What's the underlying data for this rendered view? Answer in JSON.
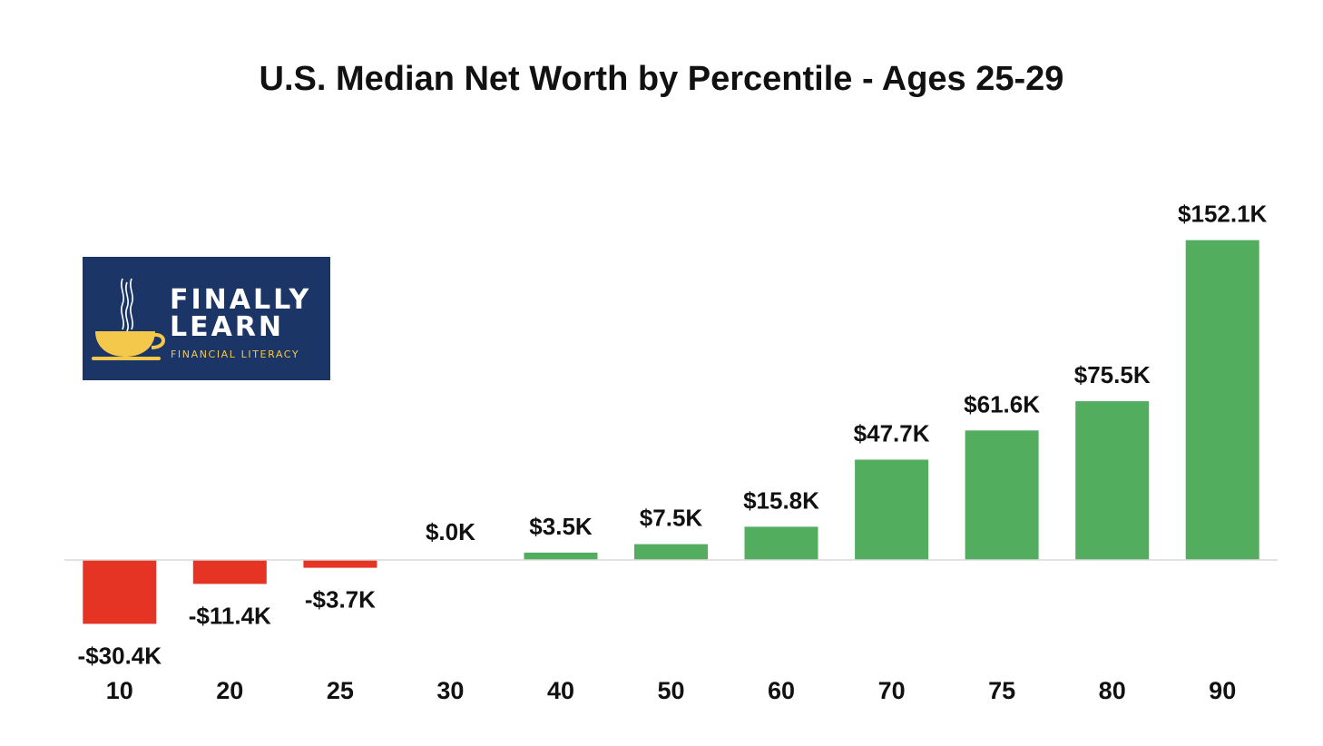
{
  "chart_data": {
    "type": "bar",
    "title": "U.S. Median Net Worth by Percentile - Ages 25-29",
    "xlabel": "",
    "ylabel": "",
    "categories": [
      "10",
      "20",
      "25",
      "30",
      "40",
      "50",
      "60",
      "70",
      "75",
      "80",
      "90"
    ],
    "values": [
      -30.4,
      -11.4,
      -3.7,
      0.0,
      3.5,
      7.5,
      15.8,
      47.7,
      61.6,
      75.5,
      152.1
    ],
    "value_labels": [
      "-$30.4K",
      "-$11.4K",
      "-$3.7K",
      "$.0K",
      "$3.5K",
      "$7.5K",
      "$15.8K",
      "$47.7K",
      "$61.6K",
      "$75.5K",
      "$152.1K"
    ],
    "unit": "thousands of USD",
    "ylim": [
      -35,
      160
    ],
    "grid": false,
    "legend": "none",
    "colors": {
      "positive": "#52ad5e",
      "negative": "#e53424",
      "baseline": "#d9d9d9"
    }
  },
  "logo": {
    "line1": "FINALLY",
    "line2": "LEARN",
    "tagline": "FINANCIAL LITERACY",
    "icon": "teacup-icon",
    "background": "#1b3666",
    "accent": "#f3c84b"
  }
}
